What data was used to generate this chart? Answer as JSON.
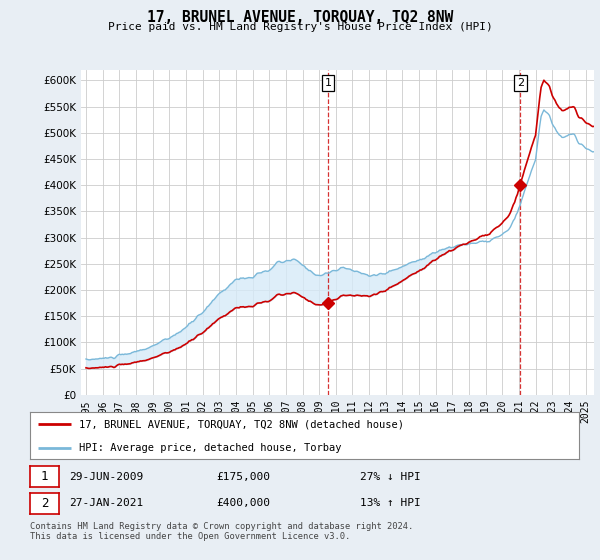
{
  "title": "17, BRUNEL AVENUE, TORQUAY, TQ2 8NW",
  "subtitle": "Price paid vs. HM Land Registry's House Price Index (HPI)",
  "ylim": [
    0,
    620000
  ],
  "yticks": [
    0,
    50000,
    100000,
    150000,
    200000,
    250000,
    300000,
    350000,
    400000,
    450000,
    500000,
    550000,
    600000
  ],
  "hpi_color": "#7ab8d9",
  "hpi_fill_color": "#d6eaf8",
  "price_color": "#cc0000",
  "sale1_date_idx": 174,
  "sale1_price": 175000,
  "sale1_label": "1",
  "sale2_date_idx": 312,
  "sale2_price": 400000,
  "sale2_label": "2",
  "legend_line1": "17, BRUNEL AVENUE, TORQUAY, TQ2 8NW (detached house)",
  "legend_line2": "HPI: Average price, detached house, Torbay",
  "background_color": "#e8eef4",
  "plot_bg_color": "#ffffff",
  "grid_color": "#cccccc"
}
